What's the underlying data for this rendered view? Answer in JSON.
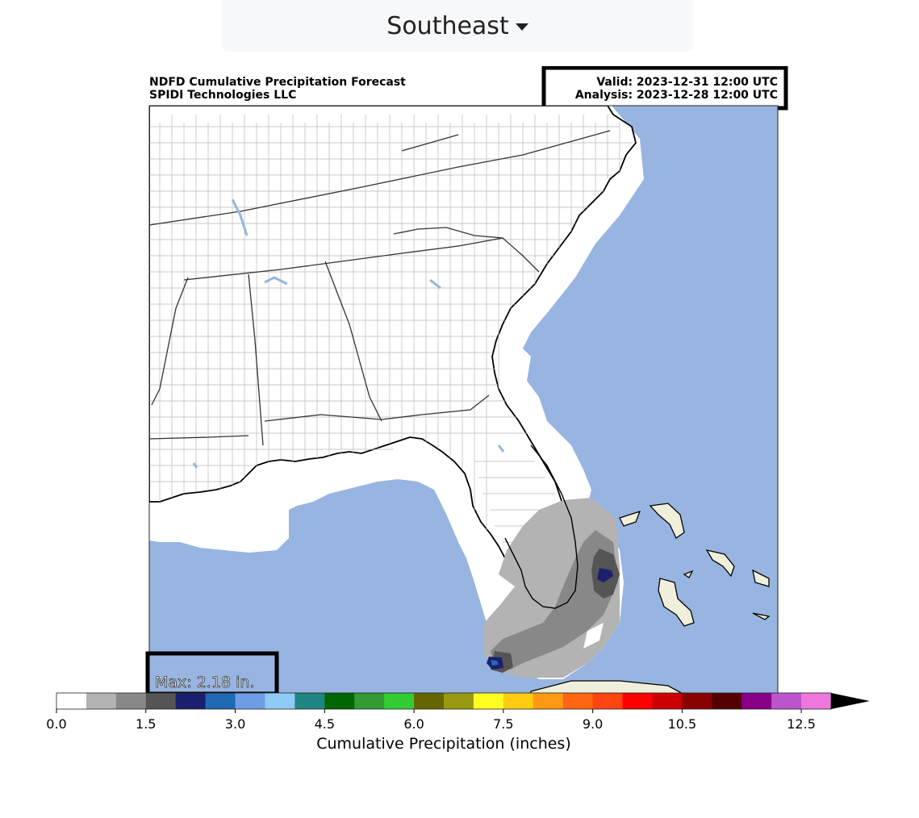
{
  "region_selector": {
    "selected": "Southeast"
  },
  "map": {
    "title_line1": "NDFD Cumulative Precipitation Forecast",
    "title_line2": "SPIDI Technologies LLC",
    "valid": "Valid: 2023-12-31 12:00 UTC",
    "analysis": "Analysis: 2023-12-28 12:00 UTC",
    "max_label": "Max: 2.18 in.",
    "colors": {
      "ocean": "#97b5e0",
      "land": "#ffffff",
      "foreign_land": "#efefdc",
      "county": "#b9b9b9",
      "state": "#333333",
      "coast": "#000000"
    }
  },
  "colorbar": {
    "label": "Cumulative Precipitation (inches)",
    "ticks": [
      {
        "value": 0.0,
        "label": "0.0"
      },
      {
        "value": 1.5,
        "label": "1.5"
      },
      {
        "value": 3.0,
        "label": "3.0"
      },
      {
        "value": 4.5,
        "label": "4.5"
      },
      {
        "value": 6.0,
        "label": "6.0"
      },
      {
        "value": 7.5,
        "label": "7.5"
      },
      {
        "value": 9.0,
        "label": "9.0"
      },
      {
        "value": 10.5,
        "label": "10.5"
      },
      {
        "value": 12.5,
        "label": "12.5"
      }
    ],
    "colors": [
      "#ffffff",
      "#b3b3b3",
      "#888888",
      "#555555",
      "#1c1f6e",
      "#1f6ab3",
      "#6f9de6",
      "#8fcbf5",
      "#1f8582",
      "#006600",
      "#339933",
      "#33cc33",
      "#666600",
      "#999911",
      "#ffff22",
      "#ffcc11",
      "#ff9911",
      "#ff6611",
      "#ff4411",
      "#ff0000",
      "#cc0000",
      "#880000",
      "#550000",
      "#880088",
      "#bb55cc",
      "#ee77dd"
    ],
    "min": 0.0,
    "step": 0.5,
    "extend_color": "#000000"
  }
}
